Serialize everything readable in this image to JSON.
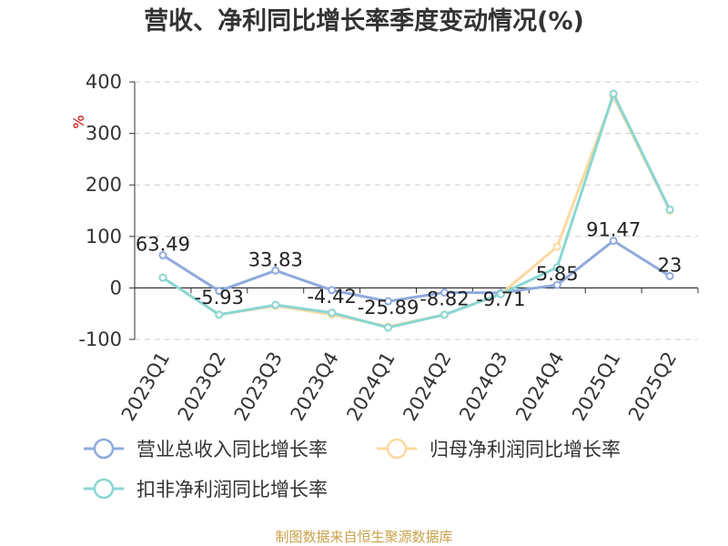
{
  "chart_data": {
    "type": "line",
    "title": "营收、净利同比增长率季度变动情况(%)",
    "ylabel": "%",
    "xlabel": "",
    "categories": [
      "2023Q1",
      "2023Q2",
      "2023Q3",
      "2023Q4",
      "2024Q1",
      "2024Q2",
      "2024Q3",
      "2024Q4",
      "2025Q1",
      "2025Q2"
    ],
    "ylim": [
      -100,
      400
    ],
    "yticks": [
      400,
      300,
      200,
      100,
      0,
      -100
    ],
    "grid": true,
    "legend_position": "bottom",
    "series": [
      {
        "name": "营业总收入同比增长率",
        "color": "#8faadc",
        "values": [
          63.49,
          -5.93,
          33.83,
          -4.42,
          -25.89,
          -8.82,
          -9.71,
          5.85,
          91.47,
          23
        ],
        "labels": [
          "63.49",
          "-5.93",
          "33.83",
          "-4.42",
          "-25.89",
          "-8.82",
          "-9.71",
          "5.85",
          "91.47",
          "23"
        ]
      },
      {
        "name": "归母净利润同比增长率",
        "color": "#fdd9a0",
        "values": [
          20,
          -52,
          -35,
          -52,
          -75,
          -52,
          -12,
          80,
          372,
          150
        ]
      },
      {
        "name": "扣非净利润同比增长率",
        "color": "#8ad6d3",
        "values": [
          20,
          -52,
          -33,
          -48,
          -77,
          -52,
          -12,
          40,
          377,
          152
        ]
      }
    ],
    "source": "制图数据来自恒生聚源数据库"
  }
}
